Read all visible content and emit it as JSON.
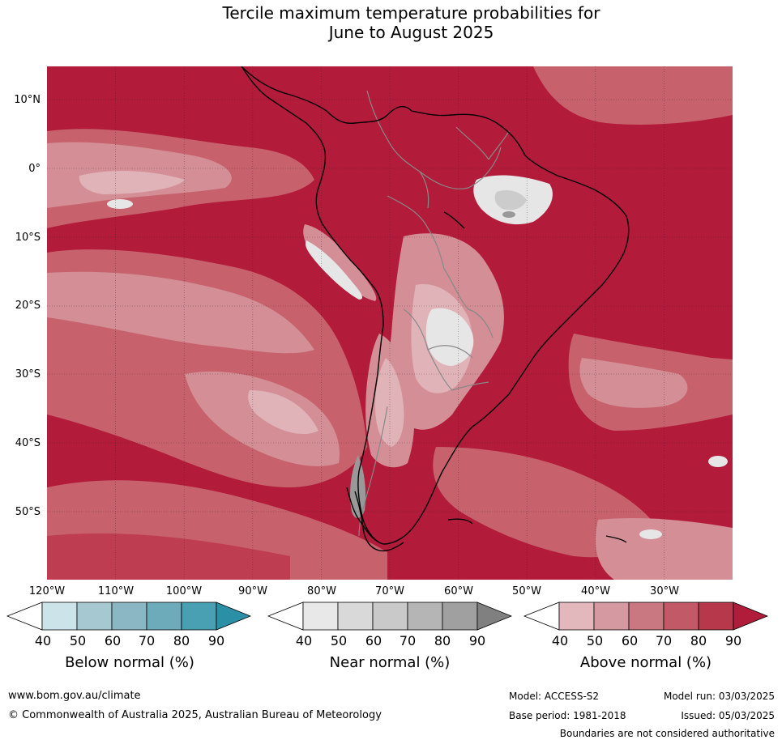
{
  "title_line1": "Tercile maximum temperature probabilities for",
  "title_line2": "June to August 2025",
  "lat_labels": [
    "10°N",
    "0°",
    "10°S",
    "20°S",
    "30°S",
    "40°S",
    "50°S"
  ],
  "lon_labels": [
    "120°W",
    "110°W",
    "100°W",
    "90°W",
    "80°W",
    "70°W",
    "60°W",
    "50°W",
    "40°W",
    "30°W"
  ],
  "colorbars": {
    "below": {
      "label": "Below normal (%)",
      "ticks": [
        "40",
        "50",
        "60",
        "70",
        "80",
        "90"
      ],
      "colors": [
        "#ffffff",
        "#cde3ea",
        "#a6c9d1",
        "#8bb7c4",
        "#6dabbb",
        "#48a0b2",
        "#2b8fa6"
      ]
    },
    "near": {
      "label": "Near normal (%)",
      "ticks": [
        "40",
        "50",
        "60",
        "70",
        "80",
        "90"
      ],
      "colors": [
        "#ffffff",
        "#e8e8e8",
        "#d9d9d9",
        "#c9c9c9",
        "#b5b5b5",
        "#a0a0a0",
        "#808080"
      ]
    },
    "above": {
      "label": "Above normal (%)",
      "ticks": [
        "40",
        "50",
        "60",
        "70",
        "80",
        "90"
      ],
      "colors": [
        "#ffffff",
        "#e3b8bd",
        "#d59aa1",
        "#c97780",
        "#c15a66",
        "#b8384b",
        "#b01c39"
      ]
    }
  },
  "map_colors": {
    "above_90": "#b31b3a",
    "above_80": "#bf3d50",
    "above_70": "#c7626c",
    "above_60": "#d38e96",
    "above_50": "#e0b3b8",
    "near_low": "#e6e6e6",
    "near_mid": "#cccccc",
    "near_high": "#999999",
    "coast": "#000000",
    "border": "#888888"
  },
  "footer": {
    "website": "www.bom.gov.au/climate",
    "copyright": "© Commonwealth of Australia 2025, Australian Bureau of Meteorology",
    "model": "Model: ACCESS-S2",
    "base_period": "Base period: 1981-2018",
    "model_run": "Model run: 03/03/2025",
    "issued": "Issued: 05/03/2025",
    "disclaimer": "Boundaries are not considered authoritative"
  }
}
